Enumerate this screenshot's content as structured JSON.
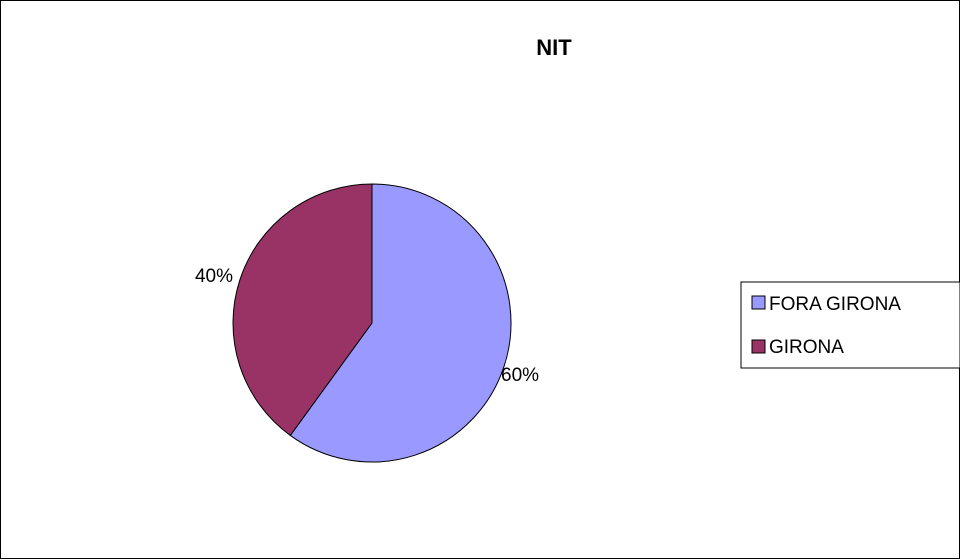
{
  "chart_data": {
    "type": "pie",
    "title": "NIT",
    "categories": [
      "FORA GIRONA",
      "GIRONA"
    ],
    "values": [
      60,
      40
    ],
    "data_labels": [
      "60%",
      "40%"
    ],
    "colors": [
      "#9999ff",
      "#993366"
    ],
    "legend": {
      "position": "right",
      "entries": [
        "FORA GIRONA",
        "GIRONA"
      ]
    }
  }
}
